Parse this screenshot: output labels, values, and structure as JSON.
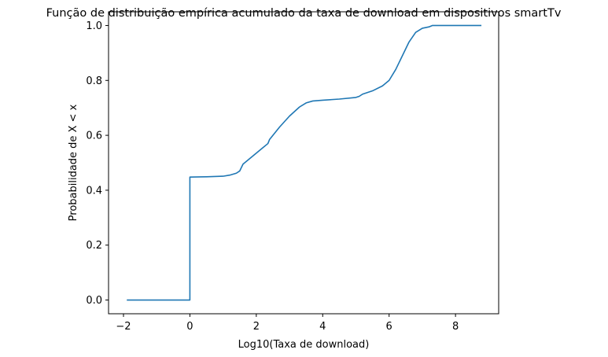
{
  "chart_data": {
    "type": "line",
    "title": "Função de distribuição empírica acumulado da taxa de download em dispositivos smartTv",
    "xlabel": "Log10(Taxa de download)",
    "ylabel": "Probabilidade de X < x",
    "xlim": [
      -2.45,
      9.3
    ],
    "ylim": [
      -0.05,
      1.05
    ],
    "xticks": [
      -2,
      0,
      2,
      4,
      6,
      8
    ],
    "xtick_labels": [
      "−2",
      "0",
      "2",
      "4",
      "6",
      "8"
    ],
    "yticks": [
      0.0,
      0.2,
      0.4,
      0.6,
      0.8,
      1.0
    ],
    "ytick_labels": [
      "0.0",
      "0.2",
      "0.4",
      "0.6",
      "0.8",
      "1.0"
    ],
    "grid": false,
    "line_color": "#1f77b4",
    "series": [
      {
        "x": [
          -1.9,
          0.0,
          0.0,
          0.5,
          1.0,
          1.2,
          1.4,
          1.5,
          1.6,
          1.8,
          2.0,
          2.2,
          2.35,
          2.4,
          2.5,
          2.7,
          3.0,
          3.3,
          3.5,
          3.7,
          4.0,
          4.5,
          5.0,
          5.1,
          5.2,
          5.5,
          5.8,
          6.0,
          6.2,
          6.4,
          6.6,
          6.8,
          7.0,
          7.2,
          7.3,
          7.5,
          8.0,
          8.5,
          8.78
        ],
        "y": [
          0.0,
          0.0,
          0.448,
          0.449,
          0.451,
          0.455,
          0.462,
          0.47,
          0.495,
          0.515,
          0.535,
          0.555,
          0.57,
          0.585,
          0.6,
          0.63,
          0.67,
          0.703,
          0.718,
          0.725,
          0.728,
          0.732,
          0.738,
          0.742,
          0.75,
          0.762,
          0.78,
          0.8,
          0.84,
          0.89,
          0.94,
          0.975,
          0.99,
          0.995,
          1.0,
          1.0,
          1.0,
          1.0,
          1.0
        ]
      }
    ]
  }
}
